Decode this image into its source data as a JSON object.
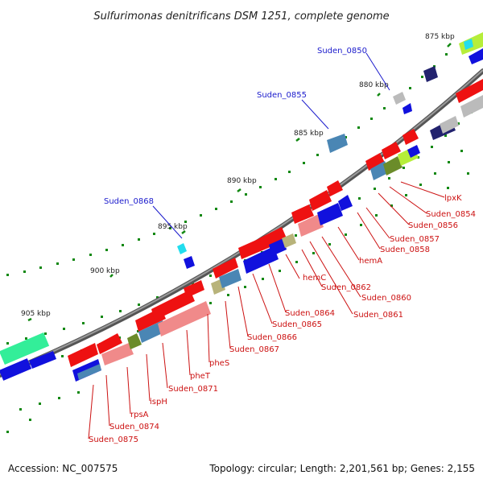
{
  "title": "Sulfurimonas denitrificans DSM 1251, complete genome",
  "footer": {
    "accession": "Accession: NC_007575",
    "summary": "Topology: circular; Length: 2,201,561 bp; Genes: 2,155"
  },
  "kbp_labels": [
    "875 kbp",
    "880 kbp",
    "885 kbp",
    "890 kbp",
    "895 kbp",
    "900 kbp",
    "905 kbp"
  ],
  "outer_labels": [
    "Suden_0850",
    "Suden_0855",
    "Suden_0868"
  ],
  "inner_labels": [
    "lpxK",
    "Suden_0854",
    "Suden_0856",
    "Suden_0857",
    "Suden_0858",
    "hemA",
    "Suden_0860",
    "Suden_0861",
    "Suden_0862",
    "hemC",
    "Suden_0864",
    "Suden_0865",
    "Suden_0866",
    "Suden_0867",
    "pheS",
    "pheT",
    "Suden_0871",
    "ispH",
    "rpsA",
    "Suden_0874",
    "Suden_0875"
  ],
  "colors": {
    "backbone": "#7a7a7a",
    "forward_cds": "#ee1111",
    "reverse_cds": "#1111dd",
    "pink": "#f08a8a",
    "steel": "#4a86b4",
    "olive": "#6b8c2a",
    "khaki": "#b8b37a",
    "navy": "#22226e",
    "cyan": "#22ddee",
    "lime": "#b6ee3a",
    "green": "#33ee99",
    "grey_feature": "#bbbbbb",
    "tick": "#118811",
    "label_blue": "#1a1acc",
    "label_red": "#cc1111"
  }
}
